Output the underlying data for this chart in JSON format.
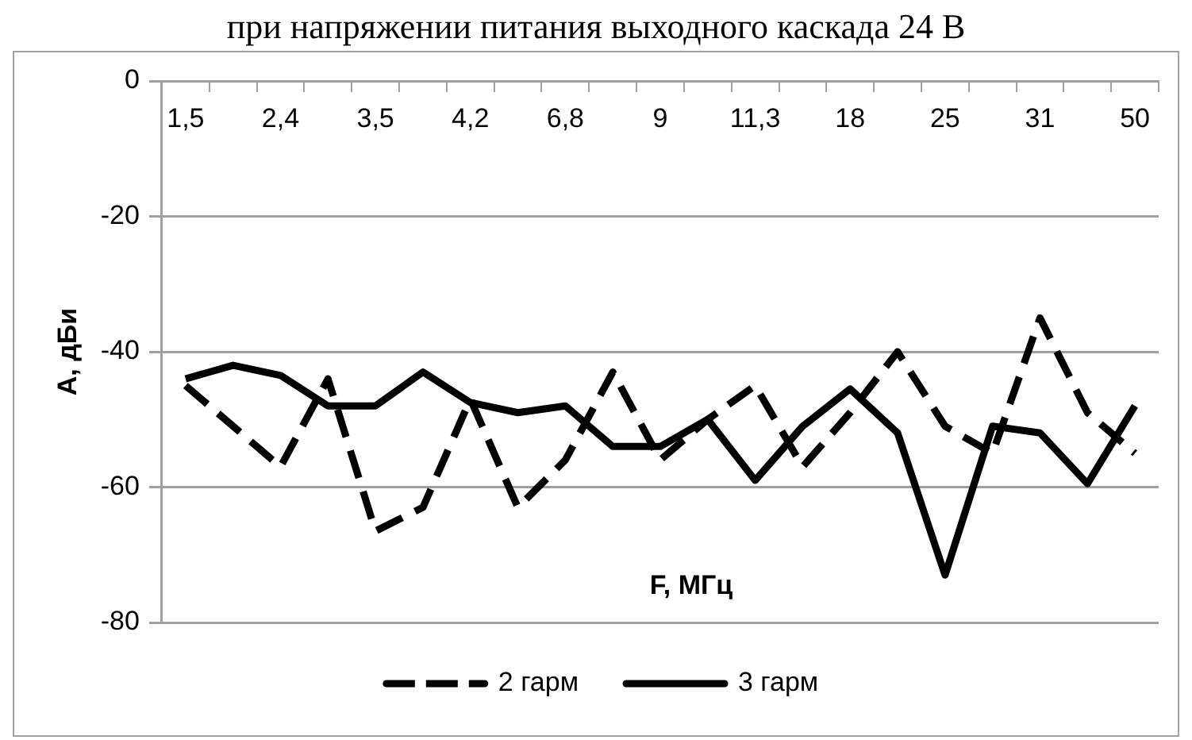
{
  "chart_data": {
    "type": "line",
    "title": "при напряжении питания выходного каскада 24 В",
    "xlabel": "F, МГц",
    "ylabel": "А, дБи",
    "categories": [
      "1,5",
      null,
      "2,4",
      null,
      "3,5",
      null,
      "4,2",
      null,
      "6,8",
      null,
      "9",
      null,
      "11,3",
      null,
      "18",
      null,
      "25",
      null,
      "31",
      null,
      "50"
    ],
    "series": [
      {
        "name": "2 гарм",
        "color": "#000000",
        "line_style": "dashed",
        "values": [
          -45,
          -51,
          -57,
          -44,
          -66.5,
          -63,
          -47,
          -63,
          -56,
          -43,
          -56,
          -50,
          -45,
          -57,
          -49,
          -40,
          -51,
          -55,
          -35,
          -49,
          -55
        ]
      },
      {
        "name": "3 гарм",
        "color": "#000000",
        "line_style": "solid",
        "values": [
          -44,
          -42,
          -43.5,
          -48,
          -48,
          -43,
          -47.5,
          -49,
          -48,
          -54,
          -54,
          -50,
          -59,
          -51,
          -45.5,
          -52,
          -73,
          -51,
          -52,
          -59.5,
          -48
        ]
      }
    ],
    "ylim": [
      -80,
      0
    ],
    "yticks": [
      0,
      -20,
      -40,
      -60,
      -80
    ],
    "grid": "y",
    "legend": "bottom",
    "marker": "none"
  }
}
